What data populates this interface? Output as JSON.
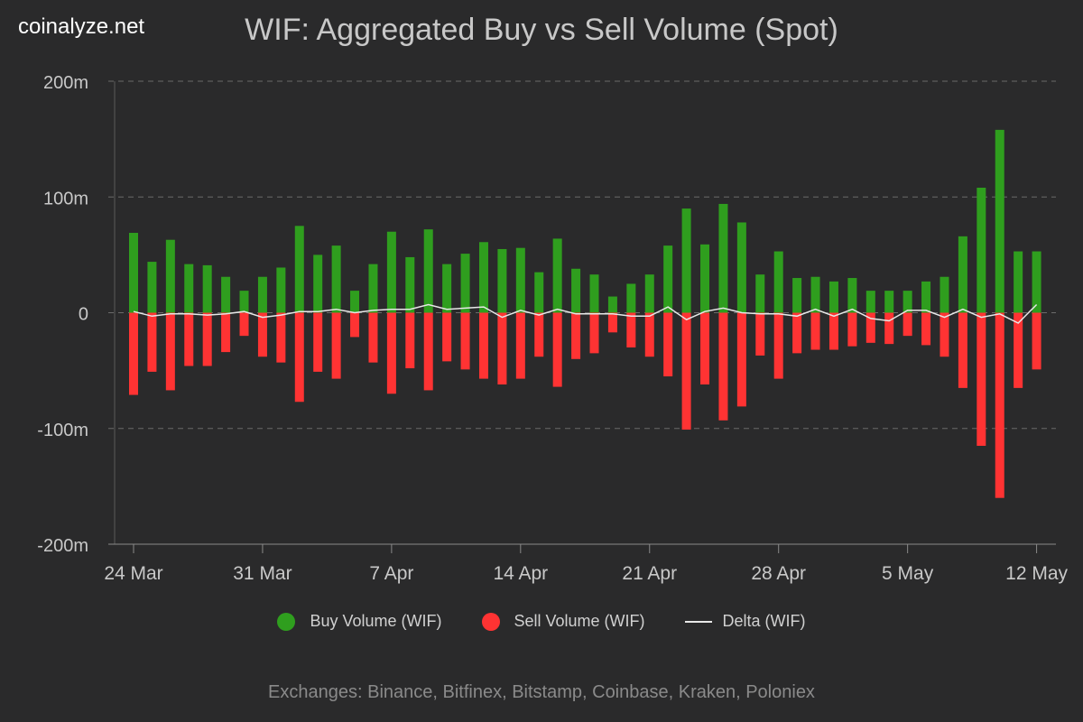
{
  "watermark": "coinalyze.net",
  "footer": "Exchanges: Binance, Bitfinex, Bitstamp, Coinbase, Kraken, Poloniex",
  "colors": {
    "background": "#2a2a2b",
    "buy": "#2f9e1e",
    "sell": "#ff3333",
    "delta": "#e8e8e8",
    "grid": "#6a6a6a",
    "text": "#c8c8c8"
  },
  "chart_data": {
    "type": "bar",
    "title": "WIF: Aggregated Buy vs Sell Volume (Spot)",
    "ylim": [
      -200,
      200
    ],
    "yticks": [
      200,
      100,
      0,
      -100,
      -200
    ],
    "ytick_labels": [
      "200m",
      "100m",
      "0",
      "-100m",
      "-200m"
    ],
    "xtick_labels": [
      "24 Mar",
      "31 Mar",
      "7 Apr",
      "14 Apr",
      "21 Apr",
      "28 Apr",
      "5 May",
      "12 May"
    ],
    "xtick_index": [
      0,
      7,
      14,
      21,
      28,
      35,
      42,
      49
    ],
    "grid": true,
    "legend_position": "bottom",
    "series": [
      {
        "name": "Buy Volume (WIF)",
        "type": "bar",
        "values": [
          69,
          44,
          63,
          42,
          41,
          31,
          19,
          31,
          39,
          75,
          50,
          58,
          19,
          42,
          70,
          48,
          72,
          42,
          51,
          61,
          55,
          56,
          35,
          64,
          38,
          33,
          14,
          25,
          33,
          58,
          90,
          59,
          94,
          78,
          33,
          53,
          30,
          31,
          27,
          30,
          19,
          19,
          19,
          27,
          31,
          66,
          108,
          158,
          53,
          53
        ]
      },
      {
        "name": "Sell Volume (WIF)",
        "type": "bar",
        "values": [
          -71,
          -51,
          -67,
          -46,
          -46,
          -34,
          -20,
          -38,
          -43,
          -77,
          -51,
          -57,
          -21,
          -43,
          -70,
          -48,
          -67,
          -42,
          -49,
          -57,
          -62,
          -57,
          -38,
          -64,
          -40,
          -35,
          -17,
          -30,
          -38,
          -55,
          -101,
          -62,
          -93,
          -81,
          -37,
          -57,
          -35,
          -32,
          -32,
          -29,
          -26,
          -27,
          -20,
          -28,
          -38,
          -65,
          -115,
          -160,
          -65,
          -49
        ]
      },
      {
        "name": "Delta (WIF)",
        "type": "line",
        "values": [
          1,
          -3,
          -1,
          -1,
          -2,
          -1,
          1,
          -4,
          -2,
          1,
          1,
          3,
          0,
          2,
          3,
          3,
          7,
          3,
          4,
          5,
          -4,
          2,
          -2,
          3,
          -1,
          -1,
          -1,
          -3,
          -3,
          5,
          -6,
          1,
          4,
          0,
          -1,
          -1,
          -3,
          3,
          -3,
          3,
          -5,
          -7,
          2,
          2,
          -4,
          3,
          -4,
          -1,
          -9,
          7
        ]
      }
    ]
  }
}
